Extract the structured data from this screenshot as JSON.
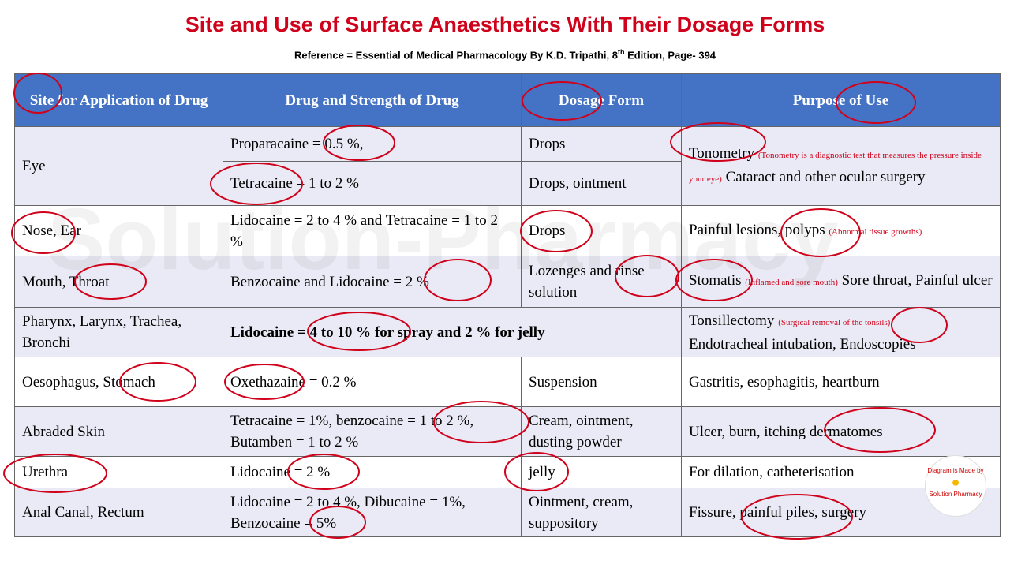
{
  "header": {
    "title": "Site and Use of Surface Anaesthetics With Their Dosage Forms",
    "reference": "Reference = Essential of Medical Pharmacology By K.D. Tripathi, 8",
    "reference_sup": "th",
    "reference_end": " Edition, Page- 394"
  },
  "watermark": "Solution-Pharmacy",
  "table": {
    "columns": [
      "Site for Application of Drug",
      "Drug and Strength of Drug",
      "Dosage Form",
      "Purpose of Use"
    ],
    "rows": [
      {
        "site": "Eye",
        "drug": "Proparacaine = 0.5 %,",
        "dosage": "Drops",
        "drug_2": "Tetracaine = 1 to 2 %",
        "dosage_2": "Drops, ointment",
        "purpose": "Tonometry",
        "note": "(Tonometry is a diagnostic test that measures the pressure inside your eye)",
        "purpose_after": "Cataract and other ocular surgery"
      },
      {
        "site": "Nose, Ear",
        "drug": "Lidocaine = 2 to 4 % and Tetracaine = 1 to 2 %",
        "dosage": "Drops",
        "purpose": "Painful lesions, polyps",
        "note": "(Abnormal tissue growths)"
      },
      {
        "site": "Mouth, Throat",
        "drug": "Benzocaine and Lidocaine = 2 %",
        "dosage": "Lozenges and rinse solution",
        "purpose": "Stomatis",
        "note": "(Inflamed and sore mouth)",
        "purpose_after": "Sore throat, Painful ulcer"
      },
      {
        "site": "Pharynx, Larynx, Trachea, Bronchi",
        "drug_and_dosage": "Lidocaine = 4 to 10 % for spray and 2 % for jelly",
        "purpose": "Tonsillectomy",
        "note": "(Surgical removal of the tonsils)",
        "purpose_after": "Endotracheal intubation, Endoscopies"
      },
      {
        "site": "Oesophagus, Stomach",
        "drug": "Oxethazaine = 0.2 %",
        "dosage": "Suspension",
        "purpose": "Gastritis, esophagitis, heartburn"
      },
      {
        "site": "Abraded Skin",
        "drug": "Tetracaine = 1%, benzocaine = 1 to 2 %, Butamben = 1 to 2 %",
        "dosage": "Cream, ointment, dusting powder",
        "purpose": "Ulcer, burn, itching dermatomes"
      },
      {
        "site": "Urethra",
        "drug": "Lidocaine = 2 %",
        "dosage": "jelly",
        "purpose": "For dilation, catheterisation"
      },
      {
        "site": "Anal Canal, Rectum",
        "drug": "Lidocaine = 2 to 4 %, Dibucaine = 1%, Benzocaine = 5%",
        "dosage": "Ointment, cream, suppository",
        "purpose": "Fissure, painful piles, surgery"
      }
    ]
  },
  "logo": {
    "top": "Diagram is Made by",
    "bottom": "Solution Pharmacy"
  }
}
